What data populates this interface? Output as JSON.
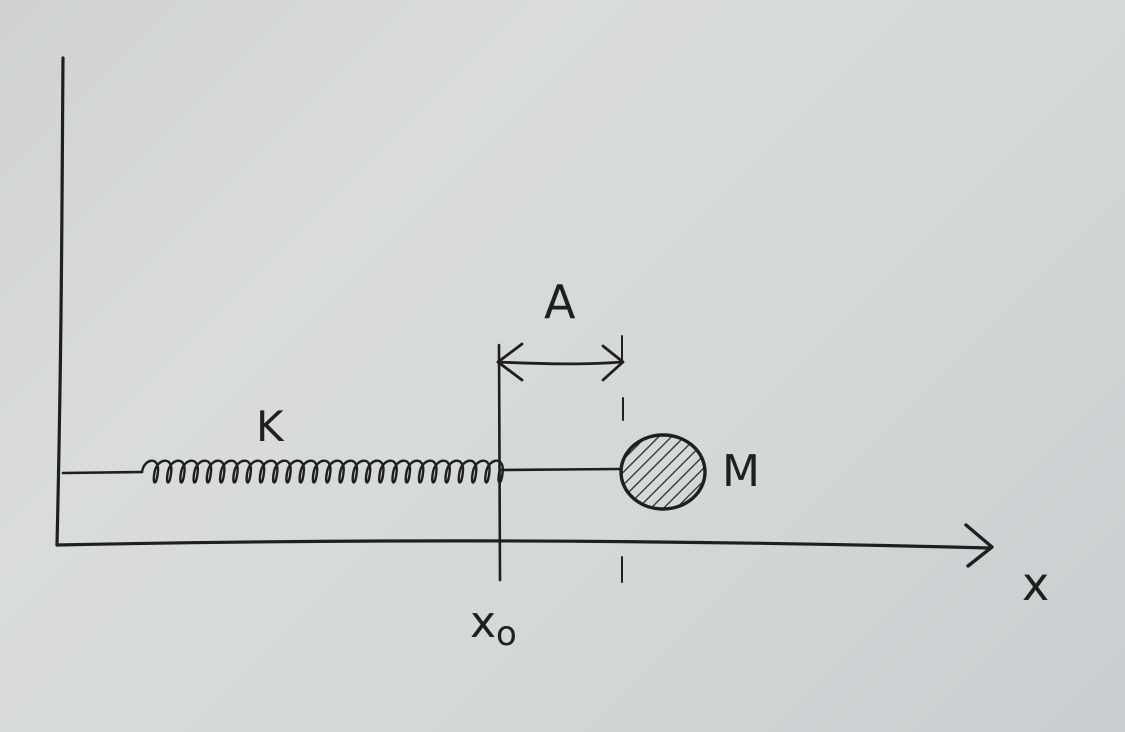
{
  "labels": {
    "spring_constant": "K",
    "amplitude": "A",
    "mass": "M",
    "x_axis": "x",
    "equilibrium_subscript": "o",
    "equilibrium_base": "x"
  },
  "colors": {
    "ink": "#1f1f1f",
    "paper": "#d4d8d8"
  }
}
